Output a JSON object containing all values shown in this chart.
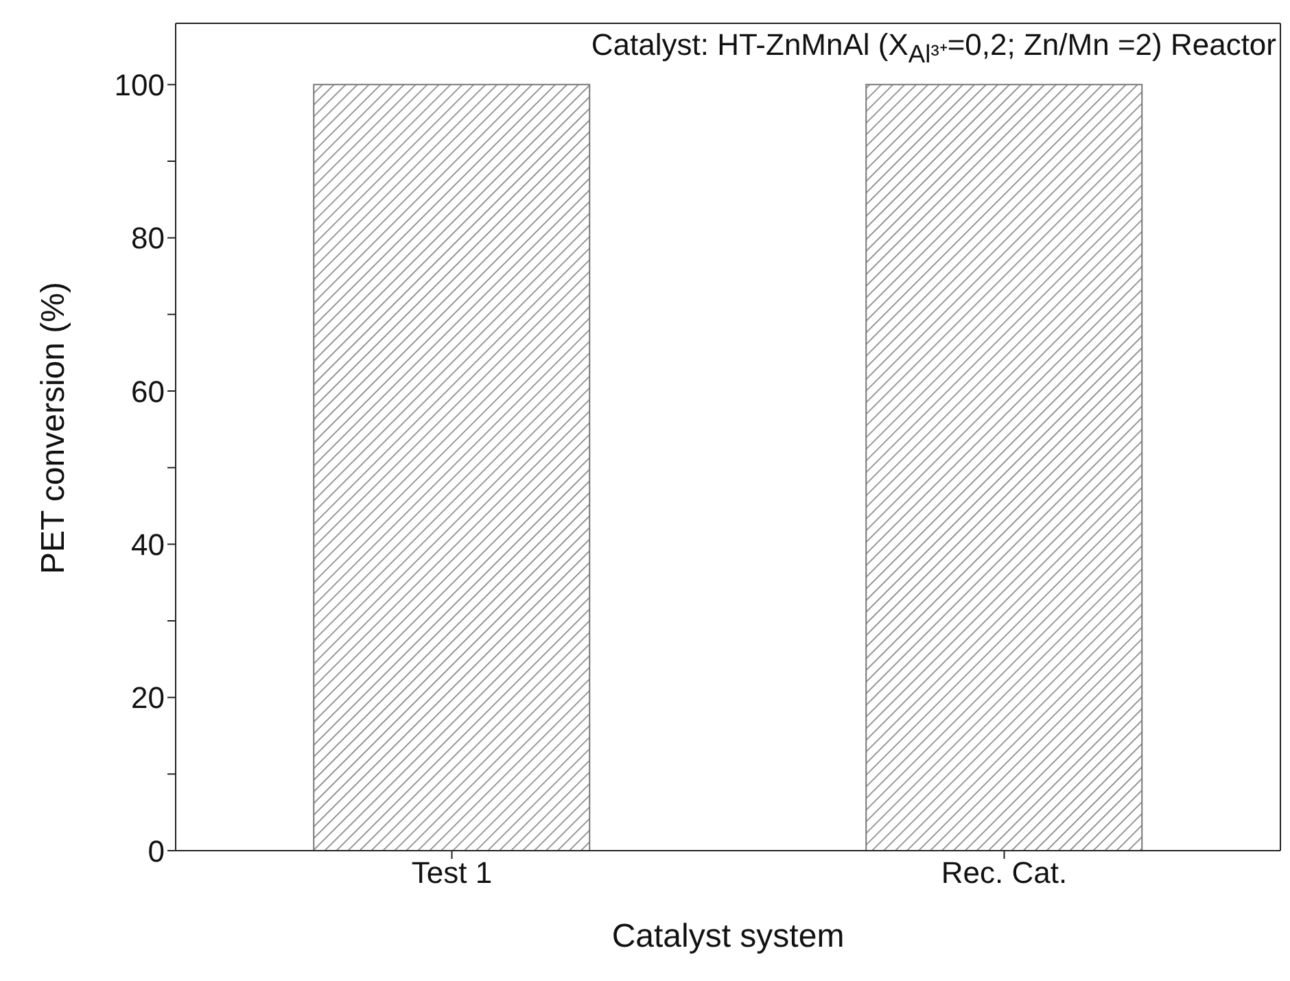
{
  "chart_data": {
    "type": "bar",
    "xlabel": "Catalyst system",
    "ylabel": "PET conversion (%)",
    "annotations": [
      "Catalyst: HT-ZnMnAl (X$_{Al³⁺}$=0,2; Zn/Mn =2) Reactor"
    ],
    "categories": [
      "Test 1",
      "Rec. Cat."
    ],
    "values": [
      100,
      100
    ],
    "color": "#777777",
    "ylim": [
      0,
      108
    ],
    "yticks": [
      0,
      {
        "value": 10,
        "label": null
      },
      20,
      {
        "value": 30,
        "label": null
      },
      40,
      {
        "value": 50,
        "label": null
      },
      60,
      {
        "value": 70,
        "label": null
      },
      80,
      {
        "value": 90,
        "label": null
      },
      100
    ]
  }
}
